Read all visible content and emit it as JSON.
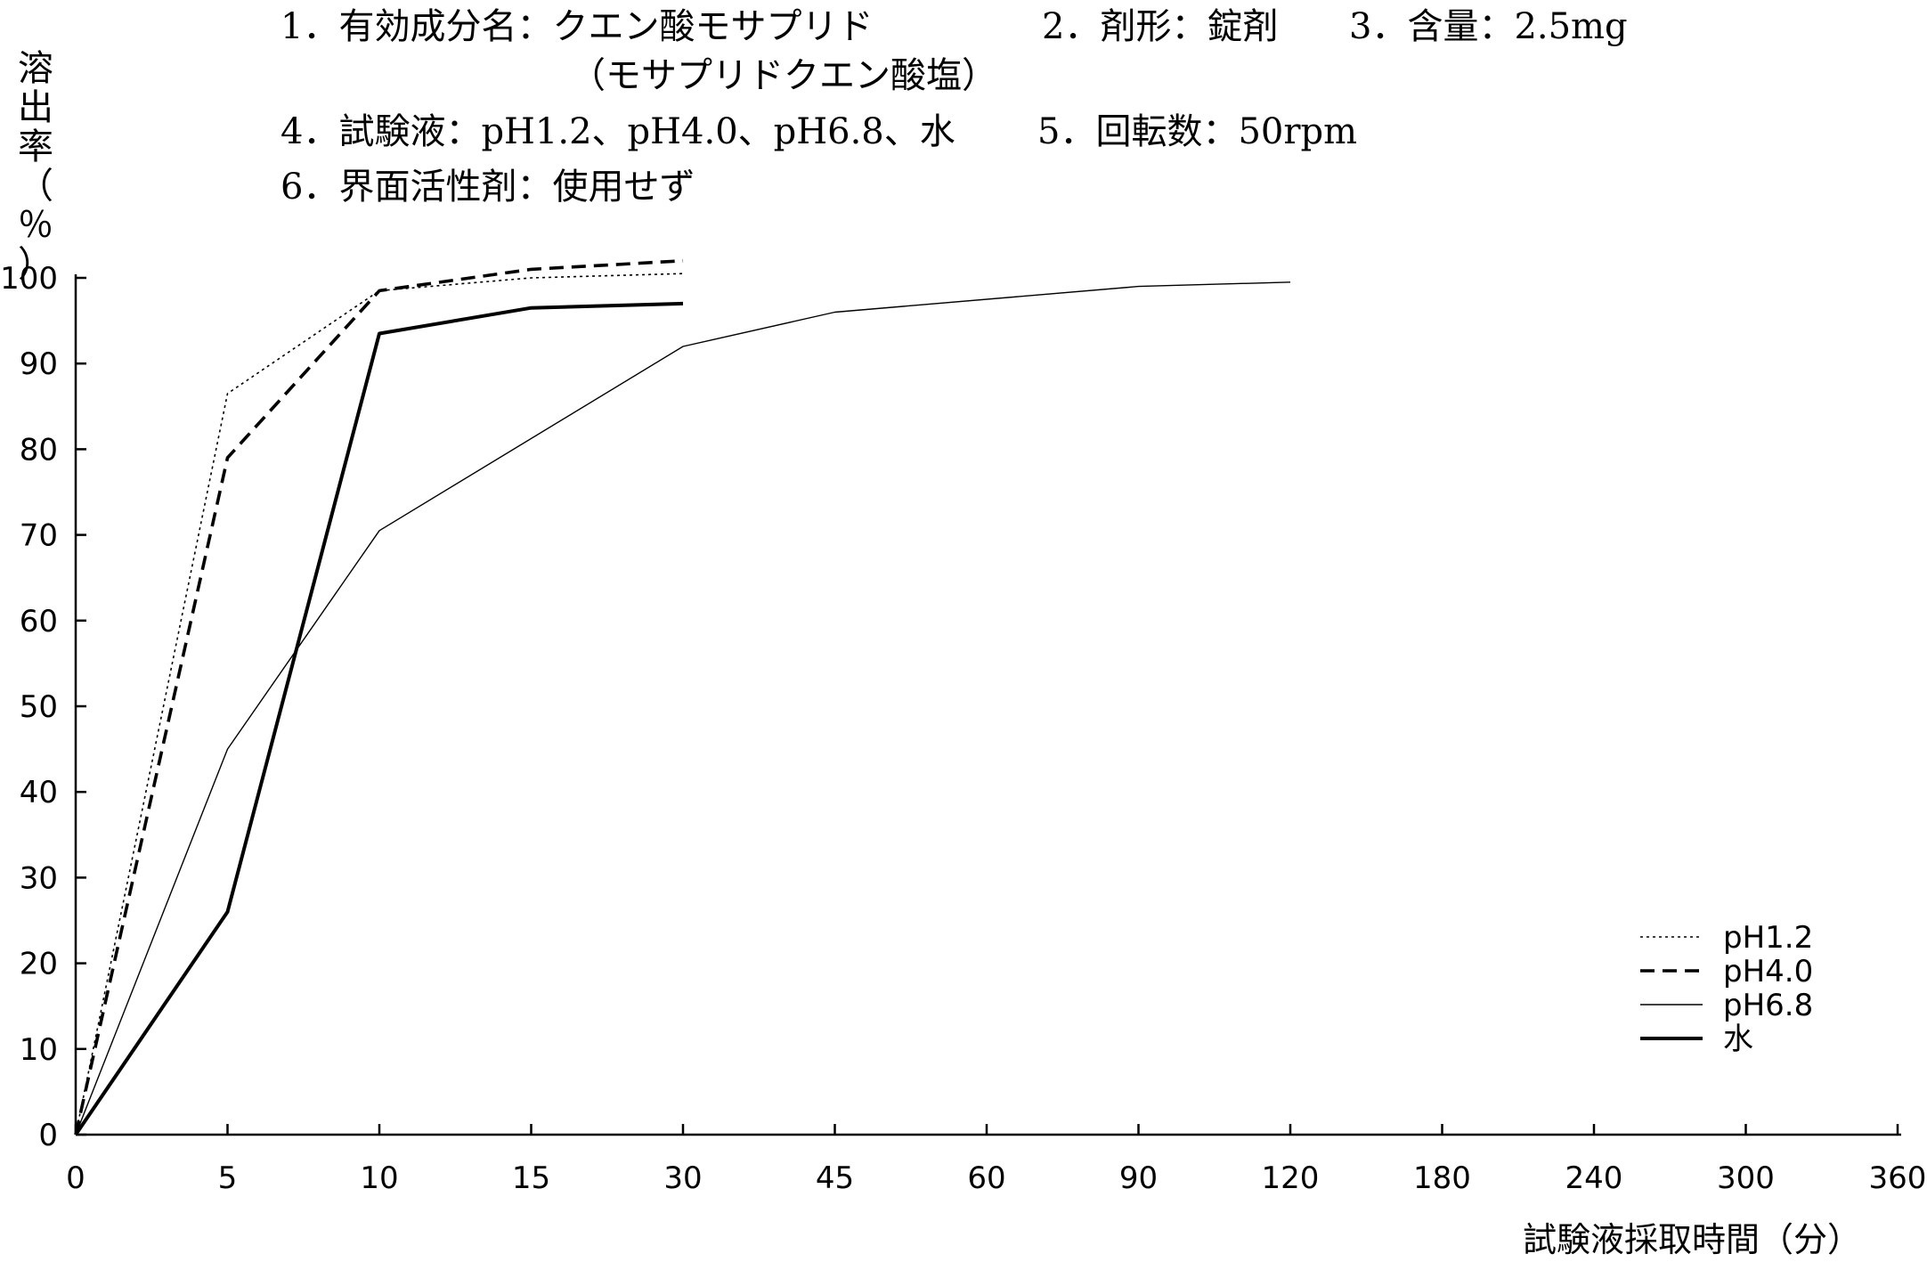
{
  "header": {
    "line1": "1．有効成分名：クエン酸モサプリド",
    "line1_dose_form": "2．剤形：錠剤",
    "line1_content": "3．含量：2.5mg",
    "line2": "（モサプリドクエン酸塩）",
    "line3": "4．試験液：pH1.2、pH4.0、pH6.8、水",
    "line3_rpm": "5．回転数：50rpm",
    "line4": "6．界面活性剤：使用せず"
  },
  "chart_data": {
    "type": "line",
    "ylabel": "溶出率（％）",
    "xlabel": "試験液採取時間（分）",
    "categories": [
      "0",
      "5",
      "10",
      "15",
      "30",
      "45",
      "60",
      "90",
      "120",
      "180",
      "240",
      "300",
      "360"
    ],
    "yticks": [
      "0",
      "10",
      "20",
      "30",
      "40",
      "50",
      "60",
      "70",
      "80",
      "90",
      "100"
    ],
    "ylim": [
      0,
      100
    ],
    "grid": false,
    "legend_position": "bottom-right",
    "series": [
      {
        "name": "pH1.2",
        "style": "dotted",
        "x": [
          0,
          5,
          10,
          15,
          30
        ],
        "values": [
          0,
          86.5,
          98.5,
          100,
          100.5
        ]
      },
      {
        "name": "pH4.0",
        "style": "dashed",
        "x": [
          0,
          5,
          10,
          15,
          30
        ],
        "values": [
          0,
          79,
          98.5,
          101,
          102
        ]
      },
      {
        "name": "pH6.8",
        "style": "thin",
        "x": [
          0,
          5,
          10,
          30,
          45,
          90,
          120
        ],
        "values": [
          0,
          45,
          70.5,
          92,
          96,
          99,
          99.5
        ]
      },
      {
        "name": "水",
        "style": "thick",
        "x": [
          0,
          5,
          10,
          15,
          30
        ],
        "values": [
          0,
          26,
          93.5,
          96.5,
          97
        ]
      }
    ]
  }
}
